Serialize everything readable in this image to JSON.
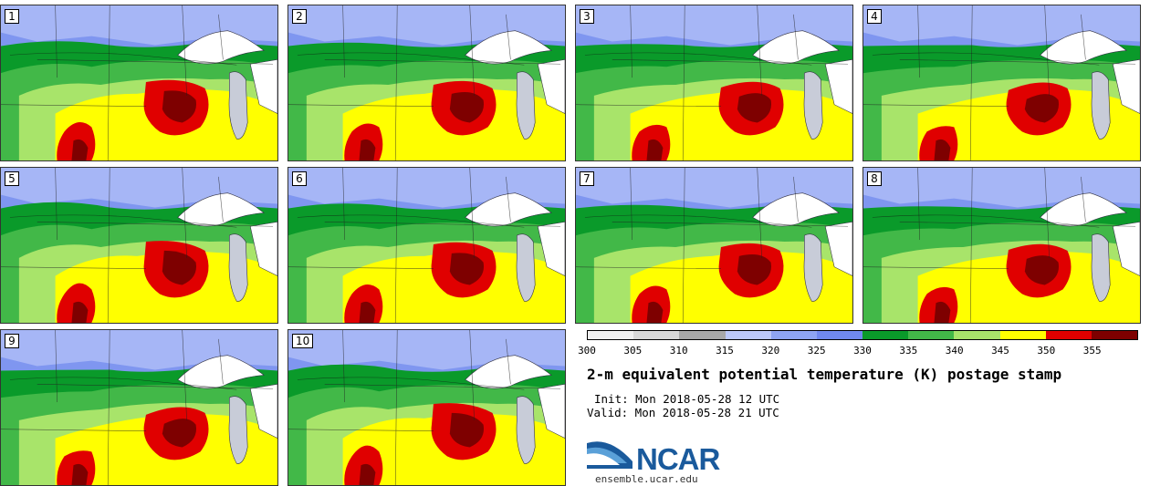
{
  "panels": [
    {
      "label": "1"
    },
    {
      "label": "2"
    },
    {
      "label": "3"
    },
    {
      "label": "4"
    },
    {
      "label": "5"
    },
    {
      "label": "6"
    },
    {
      "label": "7"
    },
    {
      "label": "8"
    },
    {
      "label": "9"
    },
    {
      "label": "10"
    }
  ],
  "colorbar": {
    "ticks": [
      "300",
      "305",
      "310",
      "315",
      "320",
      "325",
      "330",
      "335",
      "340",
      "345",
      "350",
      "355"
    ],
    "colors": [
      "#f0f0f0",
      "#d8d8d8",
      "#a8a8a8",
      "#bcc8f8",
      "#8ea4f2",
      "#7088ee",
      "#0a9a2a",
      "#42b848",
      "#a8e46a",
      "#ffff00",
      "#e00000",
      "#7e0000"
    ]
  },
  "title": "2-m equivalent potential temperature (K) postage stamp",
  "init": "Init: Mon 2018-05-28 12 UTC",
  "valid": "Valid: Mon 2018-05-28 21 UTC",
  "logo": {
    "text": "NCAR",
    "url": "ensemble.ucar.edu"
  }
}
